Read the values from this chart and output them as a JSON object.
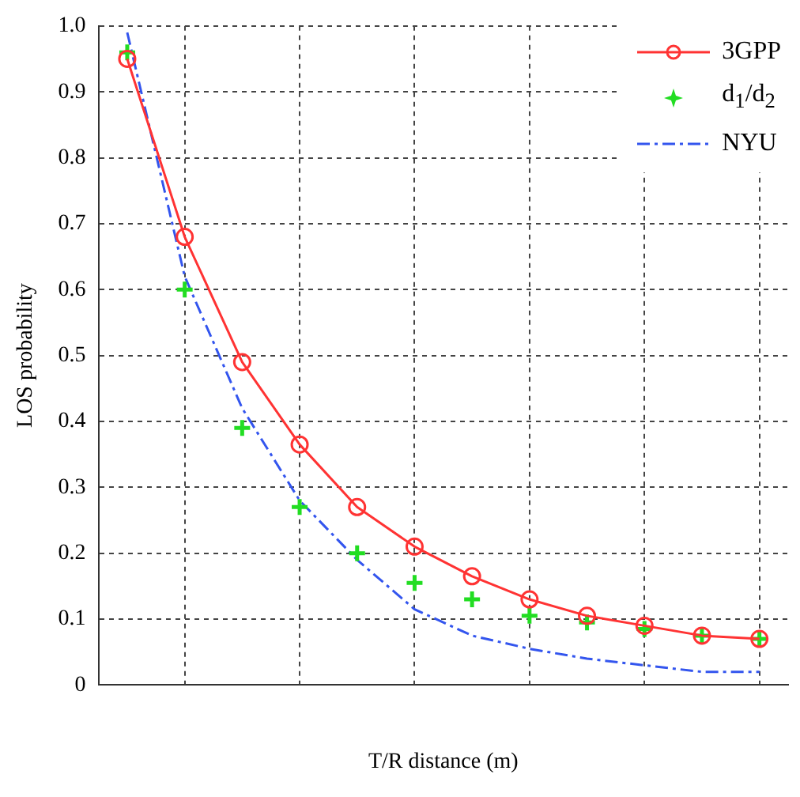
{
  "chart_data": {
    "type": "line",
    "xlabel": "T/R distance (m)",
    "ylabel": "LOS probability",
    "categories": [
      null,
      null,
      null,
      null,
      null,
      null,
      null,
      null,
      null,
      null,
      null,
      null
    ],
    "series": [
      {
        "name": "3GPP",
        "type": "line",
        "color": "#ff3333",
        "marker": "circle",
        "line_style": "solid",
        "values": [
          0.95,
          0.68,
          0.49,
          0.365,
          0.27,
          0.21,
          0.165,
          0.13,
          0.105,
          0.09,
          0.075,
          0.07
        ]
      },
      {
        "name": "d$_{1}$/d$_{2}$",
        "type": "scatter",
        "color": "#22dd22",
        "marker": "cross",
        "values": [
          0.96,
          0.6,
          0.39,
          0.27,
          0.2,
          0.155,
          0.13,
          0.105,
          0.095,
          0.085,
          0.075,
          0.07
        ]
      },
      {
        "name": "NYU",
        "type": "line",
        "color": "#3355ee",
        "marker": "none",
        "line_style": "dashed",
        "values": [
          0.99,
          0.62,
          0.42,
          0.28,
          0.19,
          0.115,
          0.075,
          0.055,
          0.04,
          0.03,
          0.02,
          0.02
        ]
      }
    ],
    "ylim": [
      0,
      1
    ],
    "yticks": [
      0,
      0.1,
      0.2,
      0.3,
      0.4,
      0.5,
      0.6,
      0.7,
      0.8,
      0.9,
      {
        "value": 1,
        "label": "1.0"
      }
    ],
    "tick_labels": "y",
    "grid": true,
    "legend": "top right"
  }
}
